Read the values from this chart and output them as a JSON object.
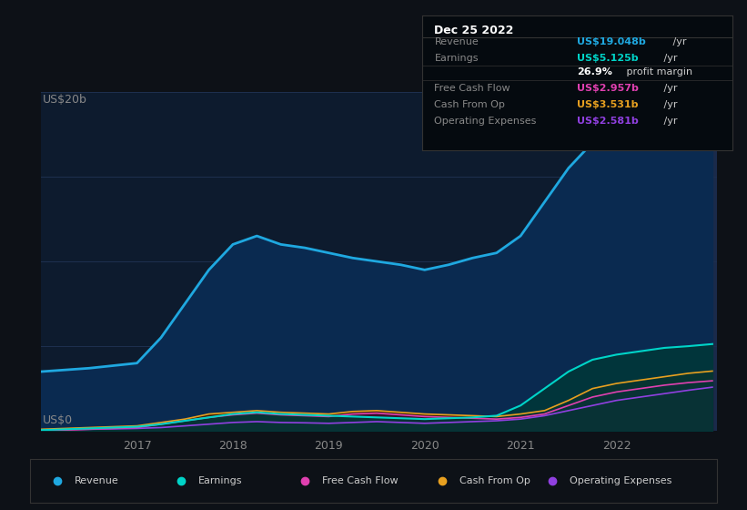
{
  "bg_color": "#0d1117",
  "chart_bg": "#0d1b2e",
  "highlight_color": "#1a2a4a",
  "years": [
    2016.0,
    2016.25,
    2016.5,
    2016.75,
    2017.0,
    2017.25,
    2017.5,
    2017.75,
    2018.0,
    2018.25,
    2018.5,
    2018.75,
    2019.0,
    2019.25,
    2019.5,
    2019.75,
    2020.0,
    2020.25,
    2020.5,
    2020.75,
    2021.0,
    2021.25,
    2021.5,
    2021.75,
    2022.0,
    2022.25,
    2022.5,
    2022.75,
    2023.0
  ],
  "revenue": [
    3.5,
    3.6,
    3.7,
    3.85,
    4.0,
    5.5,
    7.5,
    9.5,
    11.0,
    11.5,
    11.0,
    10.8,
    10.5,
    10.2,
    10.0,
    9.8,
    9.5,
    9.8,
    10.2,
    10.5,
    11.5,
    13.5,
    15.5,
    17.0,
    18.0,
    18.5,
    18.8,
    19.0,
    19.048
  ],
  "earnings": [
    0.05,
    0.1,
    0.15,
    0.2,
    0.25,
    0.4,
    0.6,
    0.8,
    1.0,
    1.1,
    1.0,
    0.95,
    0.9,
    0.85,
    0.8,
    0.75,
    0.7,
    0.75,
    0.8,
    0.9,
    1.5,
    2.5,
    3.5,
    4.2,
    4.5,
    4.7,
    4.9,
    5.0,
    5.125
  ],
  "free_cash_flow": [
    0.0,
    0.05,
    0.1,
    0.15,
    0.2,
    0.4,
    0.6,
    0.8,
    0.95,
    1.05,
    0.95,
    0.9,
    0.85,
    1.0,
    1.05,
    0.95,
    0.85,
    0.8,
    0.75,
    0.7,
    0.8,
    1.0,
    1.5,
    2.0,
    2.3,
    2.5,
    2.7,
    2.85,
    2.957
  ],
  "cash_from_op": [
    0.1,
    0.15,
    0.2,
    0.25,
    0.3,
    0.5,
    0.7,
    1.0,
    1.1,
    1.2,
    1.1,
    1.05,
    1.0,
    1.15,
    1.2,
    1.1,
    1.0,
    0.95,
    0.9,
    0.85,
    1.0,
    1.2,
    1.8,
    2.5,
    2.8,
    3.0,
    3.2,
    3.4,
    3.531
  ],
  "op_expenses": [
    0.05,
    0.08,
    0.1,
    0.12,
    0.15,
    0.2,
    0.3,
    0.4,
    0.5,
    0.55,
    0.5,
    0.48,
    0.45,
    0.5,
    0.55,
    0.5,
    0.45,
    0.5,
    0.55,
    0.6,
    0.7,
    0.9,
    1.2,
    1.5,
    1.8,
    2.0,
    2.2,
    2.4,
    2.581
  ],
  "revenue_color": "#1fa8e0",
  "earnings_color": "#00d4c8",
  "fcf_color": "#e040b0",
  "cashop_color": "#e8a020",
  "opex_color": "#9040e0",
  "highlight_start": 2022.0,
  "xmin": 2016.0,
  "xmax": 2023.05,
  "ymin": 0,
  "ymax": 20,
  "ylabel_text": "US$20b",
  "y0_text": "US$0",
  "xtick_labels": [
    "2017",
    "2018",
    "2019",
    "2020",
    "2021",
    "2022"
  ],
  "xtick_positions": [
    2017,
    2018,
    2019,
    2020,
    2021,
    2022
  ],
  "legend_items": [
    "Revenue",
    "Earnings",
    "Free Cash Flow",
    "Cash From Op",
    "Operating Expenses"
  ],
  "legend_colors": [
    "#1fa8e0",
    "#00d4c8",
    "#e040b0",
    "#e8a020",
    "#9040e0"
  ],
  "tooltip_title": "Dec 25 2022",
  "tooltip_bg": "#050a0f",
  "tooltip_border": "#333333",
  "tooltip_rows": [
    {
      "label": "Revenue",
      "value": "US$19.048b",
      "vcolor": "#1fa8e0",
      "suffix": " /yr"
    },
    {
      "label": "Earnings",
      "value": "US$5.125b",
      "vcolor": "#00d4c8",
      "suffix": " /yr"
    },
    {
      "label": "",
      "value": "26.9%",
      "vcolor": "#ffffff",
      "suffix": " profit margin"
    },
    {
      "label": "Free Cash Flow",
      "value": "US$2.957b",
      "vcolor": "#e040b0",
      "suffix": " /yr"
    },
    {
      "label": "Cash From Op",
      "value": "US$3.531b",
      "vcolor": "#e8a020",
      "suffix": " /yr"
    },
    {
      "label": "Operating Expenses",
      "value": "US$2.581b",
      "vcolor": "#9040e0",
      "suffix": " /yr"
    }
  ]
}
